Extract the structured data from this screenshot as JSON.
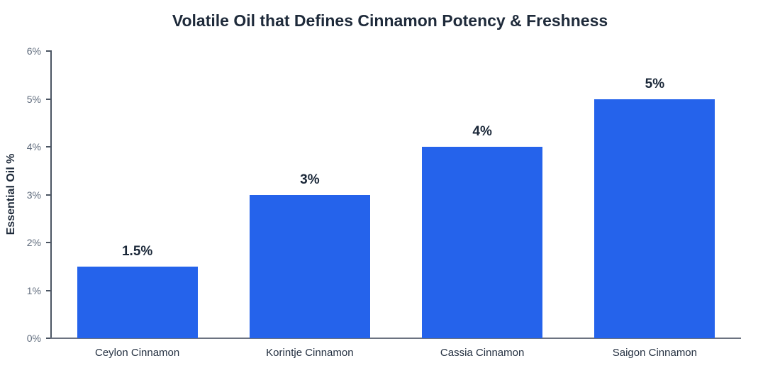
{
  "title": "Volatile Oil that Defines Cinnamon Potency & Freshness",
  "colors": {
    "bar": "#2563eb",
    "title_text": "#1e2a3a",
    "value_label_text": "#1a2738",
    "tick_label_text": "#5f6b7c",
    "category_label_text": "#243041",
    "y_axis_line": "#4b5563",
    "x_axis_line": "#6b7280",
    "background": "#ffffff"
  },
  "chart_data": {
    "type": "bar",
    "title": "Volatile Oil that Defines Cinnamon Potency & Freshness",
    "categories": [
      "Ceylon Cinnamon",
      "Korintje Cinnamon",
      "Cassia Cinnamon",
      "Saigon Cinnamon"
    ],
    "values": [
      1.5,
      3,
      4,
      5
    ],
    "value_labels": [
      "1.5%",
      "3%",
      "4%",
      "5%"
    ],
    "xlabel": "",
    "ylabel": "Essential Oil %",
    "ylim": [
      0,
      6
    ],
    "yticks": [
      "0%",
      "1%",
      "2%",
      "3%",
      "4%",
      "5%",
      "6%"
    ],
    "grid": false,
    "legend": false,
    "bar_color": "#2563eb"
  }
}
